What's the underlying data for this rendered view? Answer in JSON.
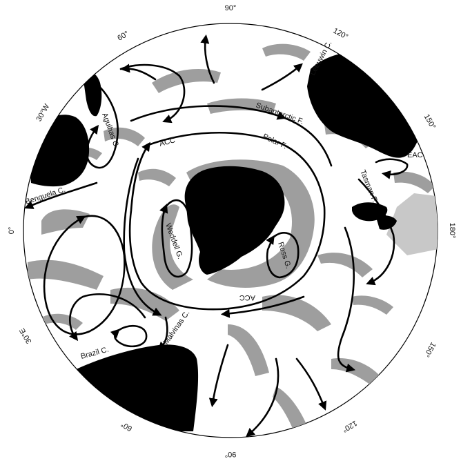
{
  "map": {
    "degree_labels": {
      "top_90": "90°",
      "top_120": "120°",
      "top_150": "150°",
      "top_60": "60°",
      "top_30w": "30°W",
      "left_0": "0°",
      "right_180": "180°",
      "bot_30e": "30°E",
      "bot_60": "60°",
      "bot_90": "90°",
      "bot_120": "120°",
      "bot_150": "150°"
    },
    "current_labels": {
      "leeuwin": "Leeuwin C.",
      "agulhas": "Agulhas C.",
      "subantarctic": "Subantarctic F.",
      "polar": "Polar F.",
      "acc_top": "ACC",
      "acc_bottom": "ACC",
      "eac": "EAC",
      "tasman": "Tasman F.",
      "benguela": "Benguela C.",
      "weddell": "Weddell G.",
      "ross": "Ross G.",
      "malvinas": "Malvinas C.",
      "brazil": "Brazil C."
    }
  }
}
